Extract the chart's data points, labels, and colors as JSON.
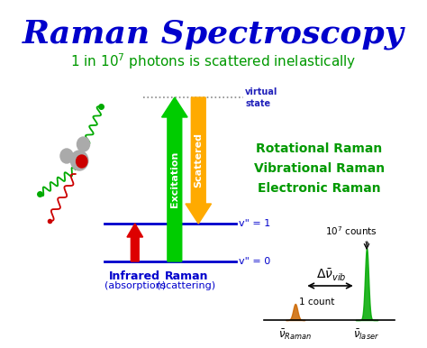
{
  "title": "Raman Spectroscopy",
  "subtitle": "1 in 10$^7$ photons is scattered inelastically",
  "bg_color": "#ffffff",
  "title_color": "#0000cc",
  "subtitle_color": "#009900",
  "raman_types": [
    "Rotational Raman",
    "Vibrational Raman",
    "Electronic Raman"
  ],
  "raman_types_color": "#009900",
  "v1_label": "v\" = 1",
  "v0_label": "v\" = 0",
  "virtual_label": "virtual\nstate",
  "infrared_label": "Infrared\n(absorption)",
  "raman_label": "Raman\n(scattering)",
  "excitation_label": "Excitation",
  "scattered_label": "Scattered",
  "arrow_green_color": "#00cc00",
  "arrow_yellow_color": "#ffaa00",
  "arrow_red_color": "#dd0000",
  "level_color": "#0000cc",
  "virtual_level_color": "#888888",
  "one_count_label": "1 count"
}
